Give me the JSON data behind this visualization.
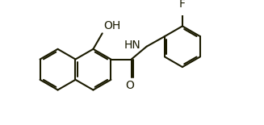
{
  "background_color": "#ffffff",
  "line_color": "#1a1a00",
  "bond_width": 1.5,
  "dbo": 0.05,
  "s": 0.62,
  "figsize": [
    3.27,
    1.55
  ],
  "dpi": 100,
  "xlim": [
    -0.3,
    7.0
  ],
  "ylim": [
    0.5,
    3.8
  ]
}
